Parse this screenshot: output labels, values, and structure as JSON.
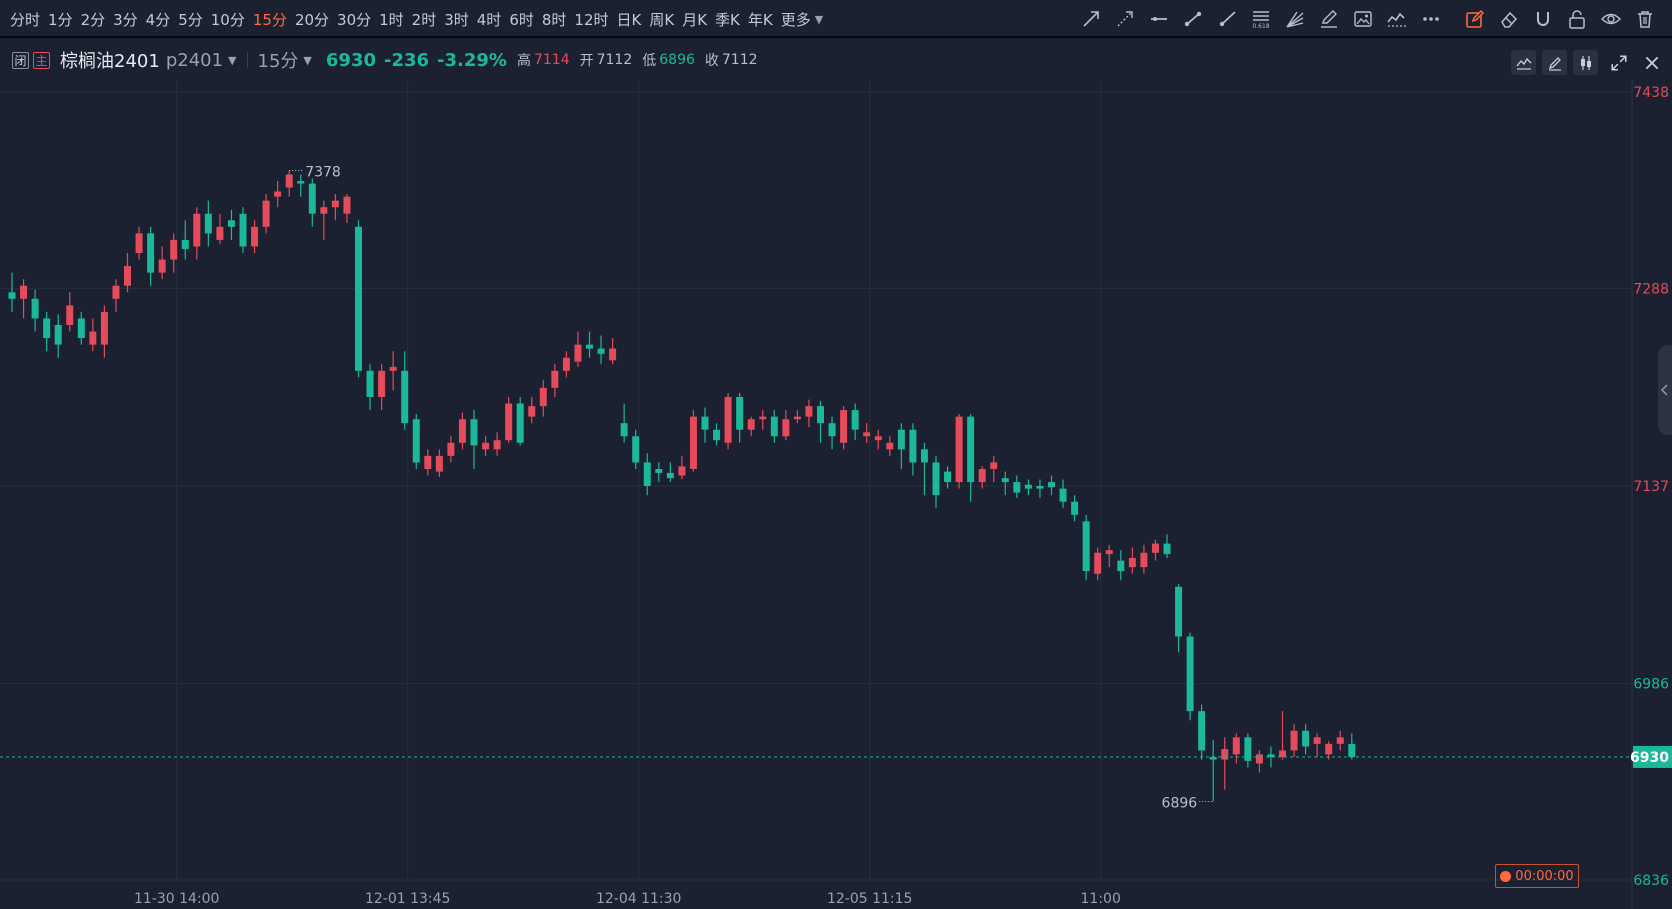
{
  "toolbar": {
    "periods": [
      "分时",
      "1分",
      "2分",
      "3分",
      "4分",
      "5分",
      "10分",
      "15分",
      "20分",
      "30分",
      "1时",
      "2时",
      "3时",
      "4时",
      "6时",
      "8时",
      "12时",
      "日K",
      "周K",
      "月K",
      "季K",
      "年K",
      "更多"
    ],
    "active_period": "15分",
    "tool_icons": [
      "arrow-line-icon",
      "dashed-arrow-icon",
      "horizontal-line-icon",
      "segment-icon",
      "ray-icon",
      "fibonacci-icon",
      "fan-icon",
      "pen-icon",
      "image-icon",
      "wave-icon",
      "more-icon",
      "edit-mode-icon",
      "eraser-icon",
      "magnet-icon",
      "unlock-icon",
      "eye-icon",
      "trash-icon"
    ],
    "fib_label": "0.618"
  },
  "info": {
    "tag_closed": "闭",
    "tag_main": "主",
    "symbol": "棕榈油2401",
    "code": "p2401",
    "period": "15分",
    "price": "6930",
    "change": "-236",
    "change_pct": "-3.29%",
    "high_label": "高",
    "high": "7114",
    "open_label": "开",
    "open": "7112",
    "low_label": "低",
    "low": "6896",
    "close_label": "收",
    "close": "7112"
  },
  "timer": "00:00:00",
  "colors": {
    "up": "#e54b5a",
    "down": "#1bb89a",
    "background": "#1b2130",
    "grid": "#263040",
    "accent": "#ff6a3c"
  },
  "chart_data": {
    "type": "candlestick",
    "y_ticks": [
      7438,
      7288,
      7137,
      6986,
      6836
    ],
    "ylim": [
      6836,
      7438
    ],
    "x_ticks": [
      "11-30 14:00",
      "12-01 13:45",
      "12-04 11:30",
      "12-05 11:15",
      "11:00"
    ],
    "current_price": 6930,
    "max_marker": "7378",
    "min_marker": "6896",
    "candles": [
      [
        7285,
        7280,
        7300,
        7270
      ],
      [
        7280,
        7290,
        7295,
        7265
      ],
      [
        7280,
        7265,
        7287,
        7255
      ],
      [
        7265,
        7250,
        7270,
        7240
      ],
      [
        7260,
        7245,
        7268,
        7235
      ],
      [
        7260,
        7275,
        7285,
        7255
      ],
      [
        7265,
        7250,
        7270,
        7245
      ],
      [
        7245,
        7255,
        7265,
        7240
      ],
      [
        7245,
        7270,
        7275,
        7235
      ],
      [
        7280,
        7290,
        7295,
        7270
      ],
      [
        7290,
        7305,
        7315,
        7285
      ],
      [
        7315,
        7330,
        7335,
        7310
      ],
      [
        7330,
        7300,
        7335,
        7290
      ],
      [
        7300,
        7310,
        7320,
        7295
      ],
      [
        7310,
        7325,
        7330,
        7300
      ],
      [
        7325,
        7318,
        7340,
        7310
      ],
      [
        7320,
        7345,
        7350,
        7310
      ],
      [
        7345,
        7330,
        7355,
        7320
      ],
      [
        7325,
        7335,
        7345,
        7322
      ],
      [
        7340,
        7335,
        7348,
        7325
      ],
      [
        7345,
        7320,
        7350,
        7315
      ],
      [
        7320,
        7335,
        7340,
        7315
      ],
      [
        7335,
        7355,
        7360,
        7330
      ],
      [
        7358,
        7362,
        7370,
        7350
      ],
      [
        7365,
        7375,
        7378,
        7358
      ],
      [
        7370,
        7368,
        7375,
        7358
      ],
      [
        7368,
        7345,
        7372,
        7335
      ],
      [
        7345,
        7350,
        7355,
        7325
      ],
      [
        7350,
        7355,
        7360,
        7340
      ],
      [
        7345,
        7358,
        7360,
        7338
      ],
      [
        7335,
        7225,
        7340,
        7220
      ],
      [
        7225,
        7205,
        7230,
        7195
      ],
      [
        7205,
        7225,
        7230,
        7195
      ],
      [
        7225,
        7228,
        7240,
        7210
      ],
      [
        7225,
        7185,
        7240,
        7180
      ],
      [
        7188,
        7155,
        7192,
        7150
      ],
      [
        7150,
        7160,
        7165,
        7145
      ],
      [
        7148,
        7160,
        7165,
        7144
      ],
      [
        7160,
        7170,
        7175,
        7155
      ],
      [
        7170,
        7188,
        7193,
        7165
      ],
      [
        7188,
        7168,
        7195,
        7150
      ],
      [
        7165,
        7170,
        7175,
        7160
      ],
      [
        7165,
        7172,
        7178,
        7160
      ],
      [
        7172,
        7200,
        7205,
        7170
      ],
      [
        7200,
        7170,
        7205,
        7168
      ],
      [
        7190,
        7198,
        7205,
        7185
      ],
      [
        7198,
        7212,
        7218,
        7190
      ],
      [
        7212,
        7225,
        7230,
        7205
      ],
      [
        7225,
        7235,
        7240,
        7220
      ],
      [
        7232,
        7245,
        7255,
        7228
      ],
      [
        7245,
        7242,
        7255,
        7235
      ],
      [
        7242,
        7238,
        7252,
        7230
      ],
      [
        7233,
        7242,
        7250,
        7230
      ],
      [
        7185,
        7175,
        7200,
        7170
      ],
      [
        7175,
        7155,
        7180,
        7150
      ],
      [
        7155,
        7137,
        7162,
        7130
      ],
      [
        7150,
        7147,
        7155,
        7140
      ],
      [
        7147,
        7143,
        7155,
        7140
      ],
      [
        7145,
        7152,
        7160,
        7142
      ],
      [
        7150,
        7190,
        7195,
        7148
      ],
      [
        7190,
        7180,
        7197,
        7170
      ],
      [
        7180,
        7172,
        7185,
        7168
      ],
      [
        7170,
        7205,
        7208,
        7165
      ],
      [
        7205,
        7180,
        7208,
        7170
      ],
      [
        7180,
        7188,
        7190,
        7175
      ],
      [
        7188,
        7190,
        7195,
        7180
      ],
      [
        7190,
        7175,
        7195,
        7170
      ],
      [
        7175,
        7188,
        7195,
        7172
      ],
      [
        7188,
        7190,
        7195,
        7185
      ],
      [
        7190,
        7198,
        7203,
        7182
      ],
      [
        7198,
        7185,
        7202,
        7170
      ],
      [
        7185,
        7175,
        7190,
        7165
      ],
      [
        7170,
        7195,
        7198,
        7165
      ],
      [
        7195,
        7180,
        7200,
        7172
      ],
      [
        7175,
        7178,
        7185,
        7170
      ],
      [
        7172,
        7175,
        7180,
        7165
      ],
      [
        7165,
        7170,
        7175,
        7160
      ],
      [
        7180,
        7165,
        7185,
        7150
      ],
      [
        7180,
        7155,
        7185,
        7145
      ],
      [
        7165,
        7155,
        7170,
        7130
      ],
      [
        7155,
        7130,
        7160,
        7120
      ],
      [
        7148,
        7140,
        7152,
        7135
      ],
      [
        7140,
        7190,
        7192,
        7135
      ],
      [
        7190,
        7140,
        7192,
        7125
      ],
      [
        7140,
        7150,
        7152,
        7135
      ],
      [
        7150,
        7155,
        7160,
        7140
      ],
      [
        7143,
        7140,
        7148,
        7130
      ],
      [
        7140,
        7132,
        7145,
        7128
      ],
      [
        7138,
        7135,
        7142,
        7130
      ],
      [
        7137,
        7135,
        7142,
        7128
      ],
      [
        7140,
        7136,
        7145,
        7130
      ],
      [
        7135,
        7125,
        7142,
        7120
      ],
      [
        7125,
        7115,
        7130,
        7110
      ],
      [
        7110,
        7072,
        7115,
        7065
      ],
      [
        7070,
        7086,
        7090,
        7065
      ],
      [
        7085,
        7088,
        7092,
        7075
      ],
      [
        7080,
        7072,
        7088,
        7065
      ],
      [
        7075,
        7082,
        7090,
        7070
      ],
      [
        7075,
        7086,
        7092,
        7070
      ],
      [
        7086,
        7093,
        7096,
        7080
      ],
      [
        7093,
        7085,
        7100,
        7082
      ],
      [
        7060,
        7022,
        7062,
        7010
      ],
      [
        7022,
        6965,
        7025,
        6958
      ],
      [
        6965,
        6935,
        6970,
        6928
      ],
      [
        6930,
        6928,
        6943,
        6896
      ],
      [
        6928,
        6936,
        6945,
        6905
      ],
      [
        6932,
        6945,
        6948,
        6925
      ],
      [
        6945,
        6927,
        6948,
        6922
      ],
      [
        6925,
        6932,
        6935,
        6918
      ],
      [
        6932,
        6930,
        6938,
        6922
      ],
      [
        6930,
        6935,
        6965,
        6928
      ],
      [
        6935,
        6950,
        6955,
        6930
      ],
      [
        6950,
        6938,
        6955,
        6932
      ],
      [
        6940,
        6945,
        6948,
        6930
      ],
      [
        6932,
        6940,
        6942,
        6928
      ],
      [
        6940,
        6945,
        6950,
        6935
      ],
      [
        6940,
        6930,
        6948,
        6928
      ]
    ]
  }
}
